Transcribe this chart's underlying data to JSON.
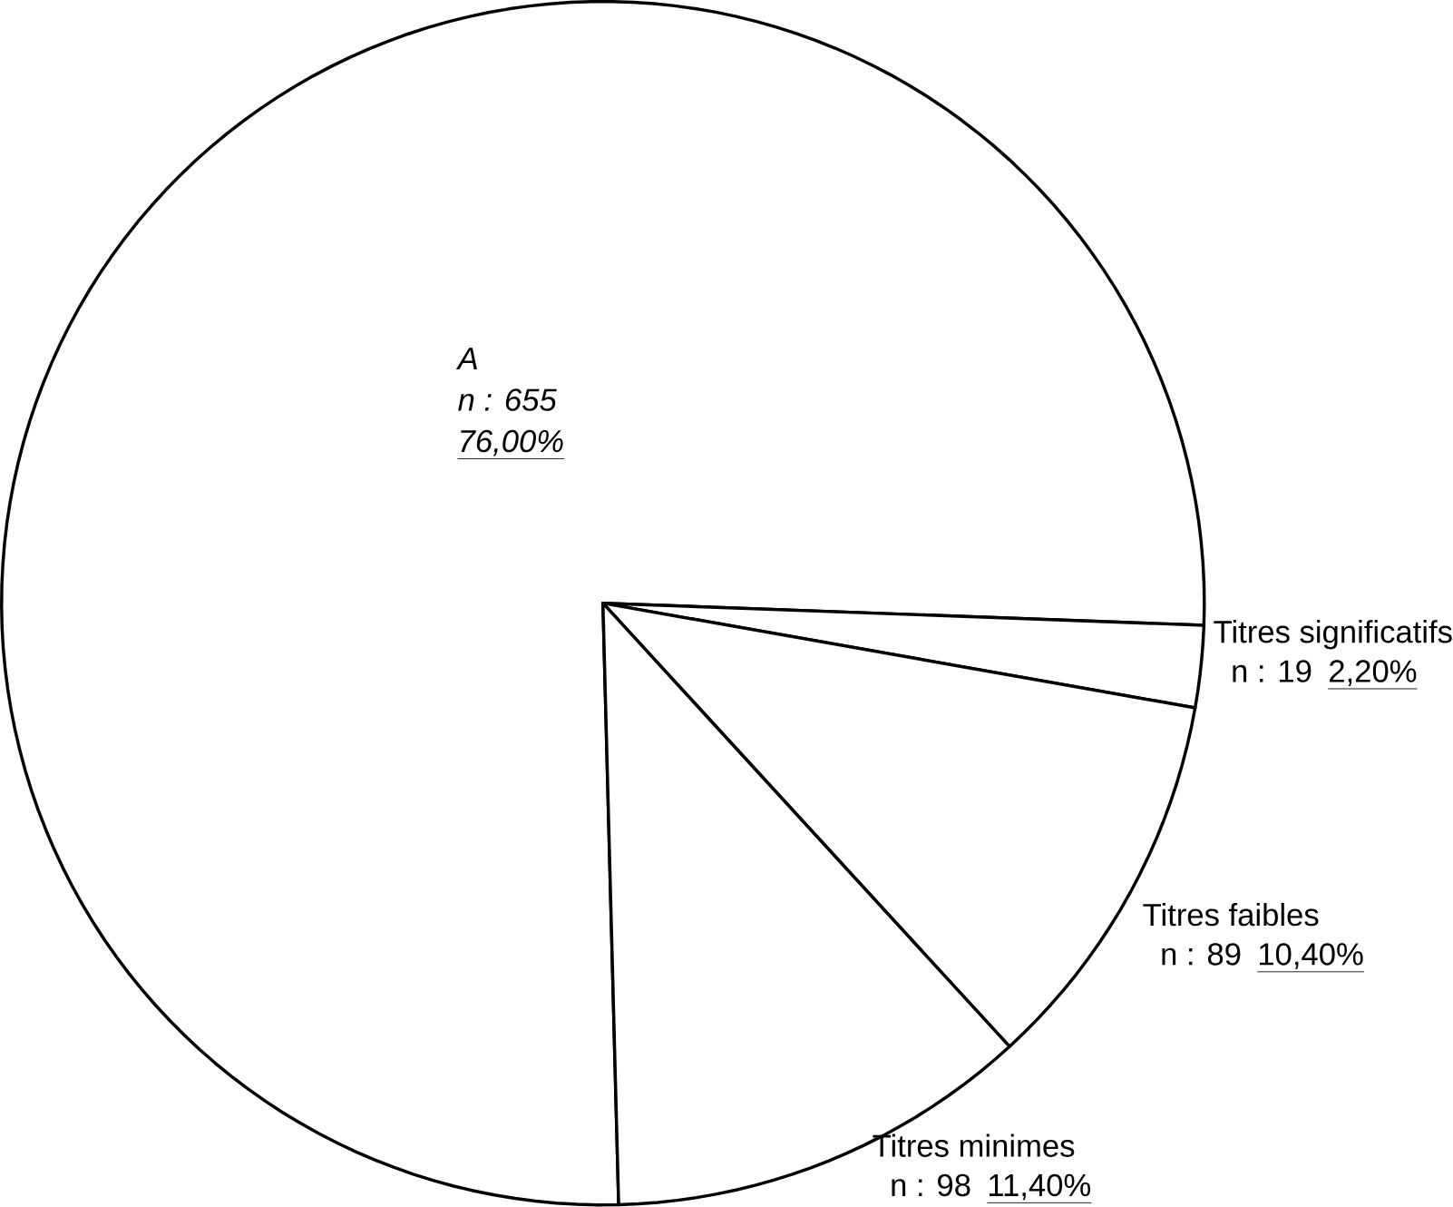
{
  "chart_data": {
    "type": "pie",
    "categories": [
      "A",
      "Titres significatifs",
      "Titres faibles",
      "Titres minimes"
    ],
    "values": [
      76.0,
      2.2,
      10.4,
      11.4
    ],
    "colors": [
      "#ffffff",
      "#ffffff",
      "#ffffff",
      "#ffffff"
    ],
    "value_labels": [
      "76,00%",
      "2,20%",
      "10,40%",
      "11,40%"
    ],
    "annotations": [
      "n : 655",
      "n : 19",
      "n : 89",
      "n : 98"
    ]
  }
}
